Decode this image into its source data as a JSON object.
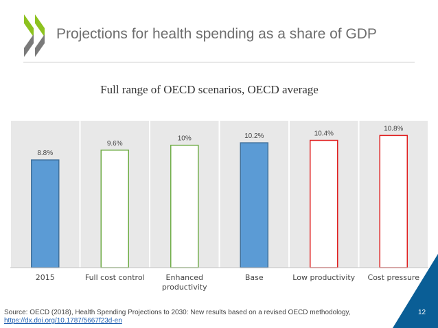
{
  "slide": {
    "title": "Projections for health spending as a share of GDP",
    "subtitle": "Full range of OECD scenarios, OECD average",
    "source_text": "Source: OECD (2018), Health Spending Projections to 2030: New results based on a revised OECD methodology, ",
    "source_link": "https://dx.doi.org/10.1787/5667f23d-en",
    "page_number": "12",
    "logo_name": "OECD",
    "colors": {
      "logo_green": "#8dc21f",
      "logo_grey": "#7a7a7a",
      "accent_blue": "#0a5e96"
    }
  },
  "chart_data": {
    "type": "bar",
    "title": "Full range of OECD scenarios, OECD average",
    "categories": [
      "2015",
      "Full cost control",
      "Enhanced productivity",
      "Base",
      "Low productivity",
      "Cost pressure"
    ],
    "values": [
      8.8,
      9.6,
      10,
      10.2,
      10.4,
      10.8
    ],
    "data_labels": [
      "8.8%",
      "9.6%",
      "10%",
      "10.2%",
      "10.4%",
      "10.8%"
    ],
    "bar_styles": [
      "filled-blue",
      "outline-green",
      "outline-green",
      "filled-blue",
      "outline-red",
      "outline-red"
    ],
    "colors": {
      "blue_fill": "#5b9bd5",
      "blue_edge": "#41719c",
      "green": "#70ad47",
      "red": "#e02020",
      "panel": "#e8e8e8"
    },
    "ylim": [
      0,
      12
    ],
    "grid": false,
    "xlabel": "",
    "ylabel": ""
  }
}
